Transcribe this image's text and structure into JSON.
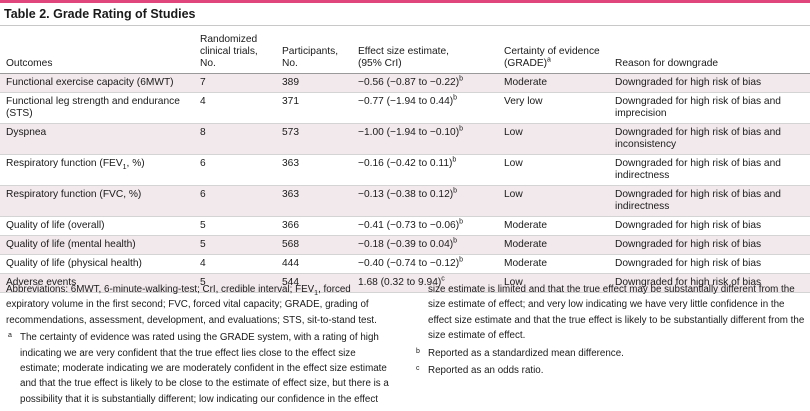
{
  "title": "Table 2. Grade Rating of Studies",
  "colors": {
    "accent": "#e0457b",
    "row_shade": "#f2e9ec"
  },
  "headers": {
    "outcomes": "Outcomes",
    "trials_l1": "Randomized",
    "trials_l2": "clinical trials,",
    "trials_l3": "No.",
    "participants_l1": "Participants,",
    "participants_l2": "No.",
    "effect_l1": "Effect size estimate,",
    "effect_l2": "(95% CrI)",
    "certainty_l1": "Certainty of evidence",
    "certainty_l2": "(GRADE)",
    "certainty_sup": "a",
    "reason": "Reason for downgrade"
  },
  "rows": [
    {
      "outcome": "Functional exercise capacity (6MWT)",
      "trials": "7",
      "participants": "389",
      "effect": "−0.56 (−0.87 to −0.22)",
      "sup": "b",
      "certainty": "Moderate",
      "reason_l1": "Downgraded for high risk of bias",
      "reason_l2": ""
    },
    {
      "outcome_l1": "Functional leg strength and endurance",
      "outcome_l2": "(STS)",
      "trials": "4",
      "participants": "371",
      "effect": "−0.77 (−1.94 to 0.44)",
      "sup": "b",
      "certainty": "Very low",
      "reason_l1": "Downgraded for high risk of bias and",
      "reason_l2": "imprecision"
    },
    {
      "outcome": "Dyspnea",
      "trials": "8",
      "participants": "573",
      "effect": "−1.00 (−1.94 to −0.10)",
      "sup": "b",
      "certainty": "Low",
      "reason_l1": "Downgraded for high risk of bias and",
      "reason_l2": "inconsistency"
    },
    {
      "outcome_pre": "Respiratory function (FEV",
      "outcome_sub": "1",
      "outcome_post": ", %)",
      "trials": "6",
      "participants": "363",
      "effect": "−0.16 (−0.42 to 0.11)",
      "sup": "b",
      "certainty": "Low",
      "reason_l1": "Downgraded for high risk of bias and",
      "reason_l2": "indirectness"
    },
    {
      "outcome": "Respiratory function (FVC, %)",
      "trials": "6",
      "participants": "363",
      "effect": "−0.13 (−0.38 to 0.12)",
      "sup": "b",
      "certainty": "Low",
      "reason_l1": "Downgraded for high risk of bias and",
      "reason_l2": "indirectness"
    },
    {
      "outcome": "Quality of life (overall)",
      "trials": "5",
      "participants": "366",
      "effect": "−0.41 (−0.73 to −0.06)",
      "sup": "b",
      "certainty": "Moderate",
      "reason_l1": "Downgraded for high risk of bias",
      "reason_l2": ""
    },
    {
      "outcome": "Quality of life (mental health)",
      "trials": "5",
      "participants": "568",
      "effect": "−0.18 (−0.39 to 0.04)",
      "sup": "b",
      "certainty": "Moderate",
      "reason_l1": "Downgraded for high risk of bias",
      "reason_l2": ""
    },
    {
      "outcome": "Quality of life (physical health)",
      "trials": "4",
      "participants": "444",
      "effect": "−0.40 (−0.74 to −0.12)",
      "sup": "b",
      "certainty": "Moderate",
      "reason_l1": "Downgraded for high risk of bias",
      "reason_l2": ""
    },
    {
      "outcome": "Adverse events",
      "trials": "5",
      "participants": "544",
      "effect": "1.68 (0.32 to 9.94)",
      "sup": "c",
      "certainty": "Low",
      "reason_l1": "Downgraded for high risk of bias",
      "reason_l2": ""
    }
  ],
  "notes": {
    "abbrev_pre": "Abbreviations: 6MWT, 6-minute-walking-test; CrI, credible interval; FEV",
    "abbrev_sub": "1",
    "abbrev_post": ", forced expiratory volume in the first second; FVC, forced vital capacity; GRADE, grading of recommendations, assessment, development, and evaluations; STS, sit-to-stand test.",
    "a_mark": "a",
    "a_text": "The certainty of evidence was rated using the GRADE system, with a rating of high indicating we are very confident that the true effect lies close to the effect size estimate; moderate indicating we are moderately confident in the effect size estimate and that the true effect is likely to be close to the estimate of effect size, but there is a possibility that it is substantially different; low indicating our confidence in the effect",
    "a_cont": "size estimate is limited and that the true effect may be substantially different from the size estimate of effect; and very low indicating we have very little confidence in the effect size estimate and that the true effect is likely to be substantially different from the size estimate of effect.",
    "b_mark": "b",
    "b_text": "Reported as a standardized mean difference.",
    "c_mark": "c",
    "c_text": "Reported as an odds ratio."
  }
}
